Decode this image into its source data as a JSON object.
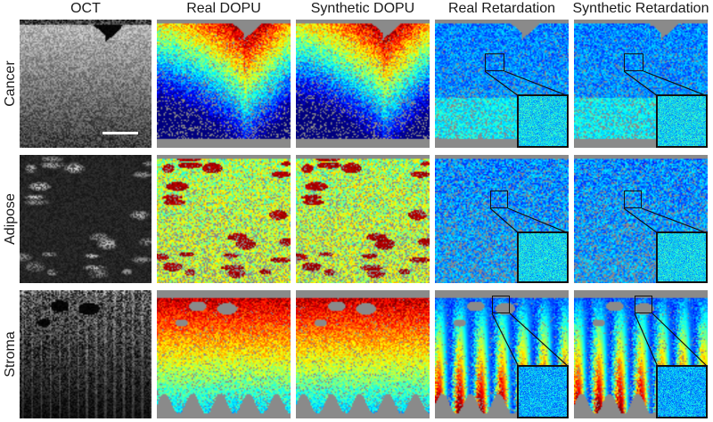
{
  "columns": [
    "OCT",
    "Real DOPU",
    "Synthetic DOPU",
    "Real Retardation",
    "Synthetic Retardation"
  ],
  "rows": [
    "Cancer",
    "Adipose",
    "Stroma"
  ],
  "colors": {
    "background": "#ffffff",
    "mask_gray": "#8a8a8a",
    "scale_bar": "#ffffff",
    "outline": "#111111"
  },
  "colormap": "jet"
}
